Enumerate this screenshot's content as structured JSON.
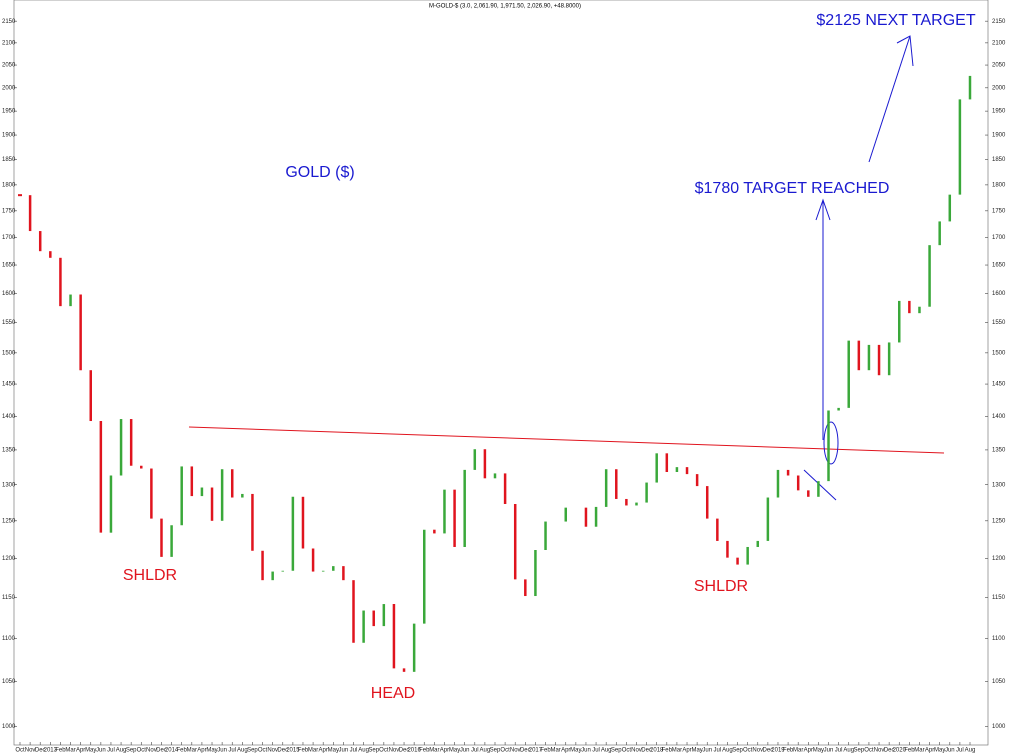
{
  "chart_data": {
    "type": "bar",
    "title": "M-GOLD-$ (3.0, 2,061.90, 1,971.50, 2,026.90, +48.8000)",
    "annotations": [
      "GOLD ($)",
      "$1780 TARGET REACHED",
      "$2125 NEXT TARGET",
      "SHLDR",
      "HEAD",
      "SHLDR"
    ],
    "categories": [
      "Oct",
      "Nov",
      "Dec",
      "2013",
      "Feb",
      "Mar",
      "Apr",
      "May",
      "Jun",
      "Jul",
      "Aug",
      "Sep",
      "Oct",
      "Nov",
      "Dec",
      "2014",
      "Feb",
      "Mar",
      "Apr",
      "May",
      "Jun",
      "Jul",
      "Aug",
      "Sep",
      "Oct",
      "Nov",
      "Dec",
      "2015",
      "Feb",
      "Mar",
      "Apr",
      "May",
      "Jun",
      "Jul",
      "Aug",
      "Sep",
      "Oct",
      "Nov",
      "Dec",
      "2016",
      "Feb",
      "Mar",
      "Apr",
      "May",
      "Jun",
      "Jul",
      "Aug",
      "Sep",
      "Oct",
      "Nov",
      "Dec",
      "2017",
      "Feb",
      "Mar",
      "Apr",
      "May",
      "Jun",
      "Jul",
      "Aug",
      "Sep",
      "Oct",
      "Nov",
      "Dec",
      "2018",
      "Feb",
      "Mar",
      "Apr",
      "May",
      "Jun",
      "Jul",
      "Aug",
      "Sep",
      "Oct",
      "Nov",
      "Dec",
      "2019",
      "Feb",
      "Mar",
      "Apr",
      "May",
      "Jun",
      "Jul",
      "Aug",
      "Sep",
      "Oct",
      "Nov",
      "Dec",
      "2020",
      "Feb",
      "Mar",
      "Apr",
      "May",
      "Jun",
      "Jul",
      "Aug"
    ],
    "values": [
      1780,
      1712,
      1675,
      1663,
      1578,
      1598,
      1472,
      1393,
      1234,
      1313,
      1396,
      1327,
      1323,
      1253,
      1202,
      1244,
      1326,
      1284,
      1296,
      1250,
      1322,
      1282,
      1287,
      1210,
      1172,
      1183,
      1184,
      1283,
      1213,
      1183,
      1184,
      1190,
      1172,
      1095,
      1134,
      1115,
      1142,
      1065,
      1061,
      1118,
      1238,
      1233,
      1293,
      1215,
      1321,
      1351,
      1309,
      1316,
      1273,
      1173,
      1152,
      1211,
      1249,
      1249,
      1268,
      1268,
      1242,
      1269,
      1322,
      1280,
      1271,
      1275,
      1303,
      1345,
      1318,
      1325,
      1315,
      1298,
      1253,
      1223,
      1201,
      1192,
      1215,
      1223,
      1282,
      1321,
      1313,
      1292,
      1283,
      1305,
      1409,
      1413,
      1520,
      1472,
      1513,
      1464,
      1517,
      1587,
      1566,
      1577,
      1686,
      1730,
      1781,
      1975,
      2026
    ],
    "up_color": "#3aa83a",
    "down_color": "#e0141e",
    "log_scale": true,
    "ylim": [
      980,
      2200
    ],
    "yticks": [
      1000,
      1050,
      1100,
      1150,
      1200,
      1250,
      1300,
      1350,
      1400,
      1450,
      1500,
      1550,
      1600,
      1650,
      1700,
      1750,
      1800,
      1850,
      1900,
      1950,
      2000,
      2050,
      2100,
      2150
    ]
  }
}
